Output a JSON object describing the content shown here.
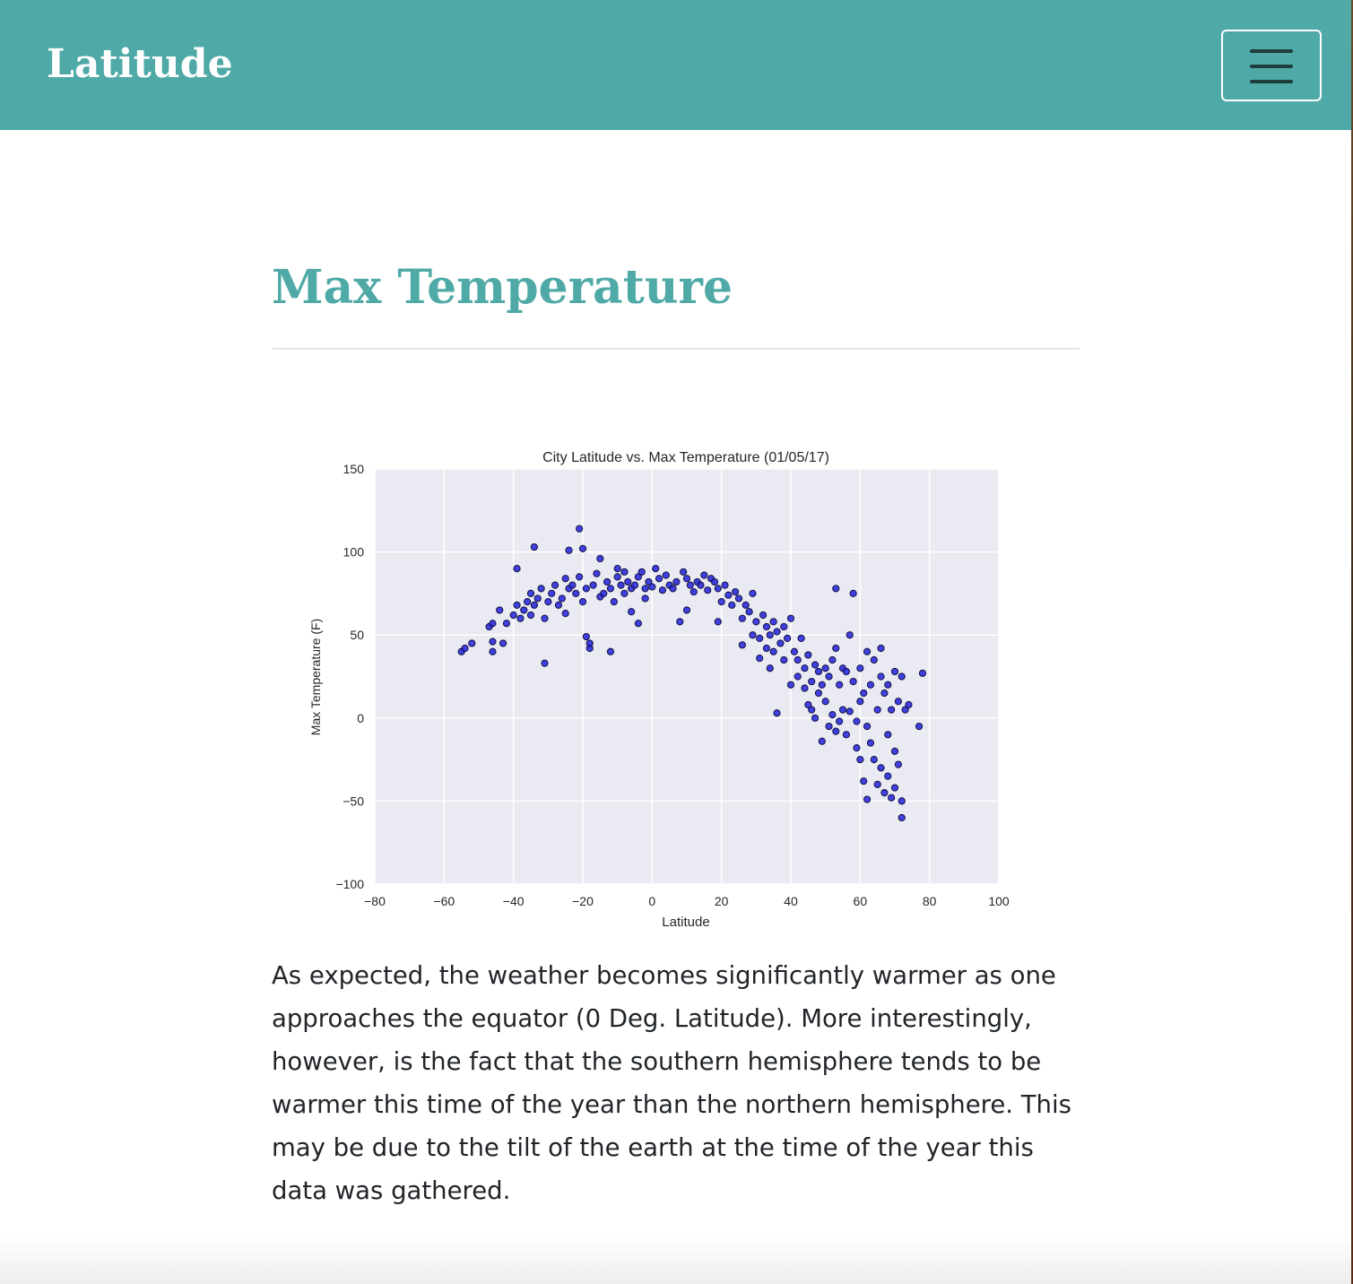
{
  "navbar": {
    "brand": "Latitude",
    "toggler_icon": "hamburger-menu-icon"
  },
  "main": {
    "title": "Max Temperature",
    "description": "As expected, the weather becomes significantly warmer as one approaches the equator (0 Deg. Latitude). More interestingly, however, is the fact that the southern hemisphere tends to be warmer this time of the year than the northern hemisphere. This may be due to the tilt of the earth at the time of the year this data was gathered."
  },
  "colors": {
    "accent": "#4fa9a6",
    "point_fill": "#2222dd",
    "point_stroke": "#111144",
    "plot_bg": "#eaeaf2"
  },
  "chart_data": {
    "type": "scatter",
    "title": "City Latitude vs. Max Temperature (01/05/17)",
    "xlabel": "Latitude",
    "ylabel": "Max Temperature (F)",
    "xlim": [
      -80,
      100
    ],
    "ylim": [
      -100,
      150
    ],
    "xticks": [
      "−80",
      "−60",
      "−40",
      "−20",
      "0",
      "20",
      "40",
      "60",
      "80",
      "100"
    ],
    "yticks": [
      "150",
      "100",
      "50",
      "0",
      "−50",
      "−100"
    ],
    "xtick_values": [
      -80,
      -60,
      -40,
      -20,
      0,
      20,
      40,
      60,
      80,
      100
    ],
    "ytick_values": [
      150,
      100,
      50,
      0,
      -50,
      -100
    ],
    "grid": true,
    "points": [
      [
        -55,
        40
      ],
      [
        -54,
        42
      ],
      [
        -52,
        45
      ],
      [
        -47,
        55
      ],
      [
        -46,
        57
      ],
      [
        -46,
        46
      ],
      [
        -46,
        40
      ],
      [
        -44,
        65
      ],
      [
        -43,
        45
      ],
      [
        -42,
        57
      ],
      [
        -40,
        62
      ],
      [
        -39,
        68
      ],
      [
        -39,
        90
      ],
      [
        -38,
        60
      ],
      [
        -37,
        65
      ],
      [
        -36,
        70
      ],
      [
        -35,
        75
      ],
      [
        -35,
        62
      ],
      [
        -34,
        103
      ],
      [
        -34,
        68
      ],
      [
        -33,
        72
      ],
      [
        -32,
        78
      ],
      [
        -31,
        60
      ],
      [
        -31,
        33
      ],
      [
        -30,
        70
      ],
      [
        -29,
        75
      ],
      [
        -28,
        80
      ],
      [
        -27,
        68
      ],
      [
        -26,
        72
      ],
      [
        -25,
        84
      ],
      [
        -25,
        63
      ],
      [
        -24,
        101
      ],
      [
        -24,
        78
      ],
      [
        -23,
        80
      ],
      [
        -22,
        75
      ],
      [
        -21,
        85
      ],
      [
        -21,
        114
      ],
      [
        -20,
        102
      ],
      [
        -20,
        70
      ],
      [
        -19,
        78
      ],
      [
        -19,
        49
      ],
      [
        -18,
        42
      ],
      [
        -18,
        45
      ],
      [
        -17,
        80
      ],
      [
        -16,
        87
      ],
      [
        -15,
        96
      ],
      [
        -15,
        73
      ],
      [
        -14,
        75
      ],
      [
        -13,
        82
      ],
      [
        -12,
        78
      ],
      [
        -12,
        40
      ],
      [
        -11,
        70
      ],
      [
        -10,
        90
      ],
      [
        -10,
        85
      ],
      [
        -9,
        80
      ],
      [
        -8,
        88
      ],
      [
        -8,
        75
      ],
      [
        -7,
        82
      ],
      [
        -6,
        78
      ],
      [
        -6,
        64
      ],
      [
        -5,
        80
      ],
      [
        -4,
        85
      ],
      [
        -4,
        57
      ],
      [
        -3,
        88
      ],
      [
        -2,
        78
      ],
      [
        -2,
        72
      ],
      [
        -1,
        82
      ],
      [
        0,
        79
      ],
      [
        1,
        90
      ],
      [
        2,
        84
      ],
      [
        3,
        77
      ],
      [
        4,
        86
      ],
      [
        5,
        80
      ],
      [
        6,
        78
      ],
      [
        7,
        82
      ],
      [
        8,
        58
      ],
      [
        9,
        88
      ],
      [
        10,
        84
      ],
      [
        10,
        65
      ],
      [
        11,
        80
      ],
      [
        12,
        76
      ],
      [
        13,
        82
      ],
      [
        14,
        80
      ],
      [
        15,
        86
      ],
      [
        16,
        77
      ],
      [
        17,
        84
      ],
      [
        18,
        82
      ],
      [
        19,
        78
      ],
      [
        19,
        58
      ],
      [
        20,
        70
      ],
      [
        21,
        80
      ],
      [
        22,
        74
      ],
      [
        23,
        68
      ],
      [
        24,
        76
      ],
      [
        25,
        72
      ],
      [
        26,
        60
      ],
      [
        26,
        44
      ],
      [
        27,
        68
      ],
      [
        28,
        64
      ],
      [
        29,
        75
      ],
      [
        29,
        50
      ],
      [
        30,
        58
      ],
      [
        31,
        48
      ],
      [
        31,
        36
      ],
      [
        32,
        62
      ],
      [
        33,
        55
      ],
      [
        33,
        42
      ],
      [
        34,
        50
      ],
      [
        34,
        30
      ],
      [
        35,
        58
      ],
      [
        35,
        40
      ],
      [
        36,
        52
      ],
      [
        36,
        3
      ],
      [
        37,
        45
      ],
      [
        38,
        35
      ],
      [
        38,
        55
      ],
      [
        39,
        48
      ],
      [
        40,
        60
      ],
      [
        40,
        20
      ],
      [
        41,
        40
      ],
      [
        42,
        25
      ],
      [
        42,
        35
      ],
      [
        43,
        48
      ],
      [
        44,
        30
      ],
      [
        44,
        18
      ],
      [
        45,
        38
      ],
      [
        45,
        8
      ],
      [
        46,
        22
      ],
      [
        46,
        5
      ],
      [
        47,
        32
      ],
      [
        47,
        0
      ],
      [
        48,
        28
      ],
      [
        48,
        15
      ],
      [
        49,
        20
      ],
      [
        49,
        -14
      ],
      [
        50,
        30
      ],
      [
        50,
        10
      ],
      [
        51,
        25
      ],
      [
        51,
        -5
      ],
      [
        52,
        35
      ],
      [
        52,
        2
      ],
      [
        53,
        42
      ],
      [
        53,
        78
      ],
      [
        53,
        -8
      ],
      [
        54,
        20
      ],
      [
        54,
        -2
      ],
      [
        55,
        30
      ],
      [
        55,
        5
      ],
      [
        56,
        28
      ],
      [
        56,
        -10
      ],
      [
        57,
        50
      ],
      [
        57,
        4
      ],
      [
        58,
        75
      ],
      [
        58,
        22
      ],
      [
        59,
        -2
      ],
      [
        59,
        -18
      ],
      [
        60,
        30
      ],
      [
        60,
        10
      ],
      [
        60,
        -25
      ],
      [
        61,
        15
      ],
      [
        61,
        -38
      ],
      [
        62,
        40
      ],
      [
        62,
        -5
      ],
      [
        62,
        -49
      ],
      [
        63,
        20
      ],
      [
        63,
        -15
      ],
      [
        64,
        35
      ],
      [
        64,
        -25
      ],
      [
        65,
        5
      ],
      [
        65,
        -40
      ],
      [
        66,
        42
      ],
      [
        66,
        25
      ],
      [
        66,
        -30
      ],
      [
        67,
        15
      ],
      [
        67,
        -45
      ],
      [
        68,
        20
      ],
      [
        68,
        -10
      ],
      [
        68,
        -35
      ],
      [
        69,
        5
      ],
      [
        69,
        -48
      ],
      [
        70,
        28
      ],
      [
        70,
        -20
      ],
      [
        70,
        -42
      ],
      [
        71,
        10
      ],
      [
        71,
        -28
      ],
      [
        72,
        25
      ],
      [
        72,
        -50
      ],
      [
        72,
        -60
      ],
      [
        73,
        5
      ],
      [
        74,
        8
      ],
      [
        77,
        -5
      ],
      [
        78,
        27
      ]
    ]
  }
}
